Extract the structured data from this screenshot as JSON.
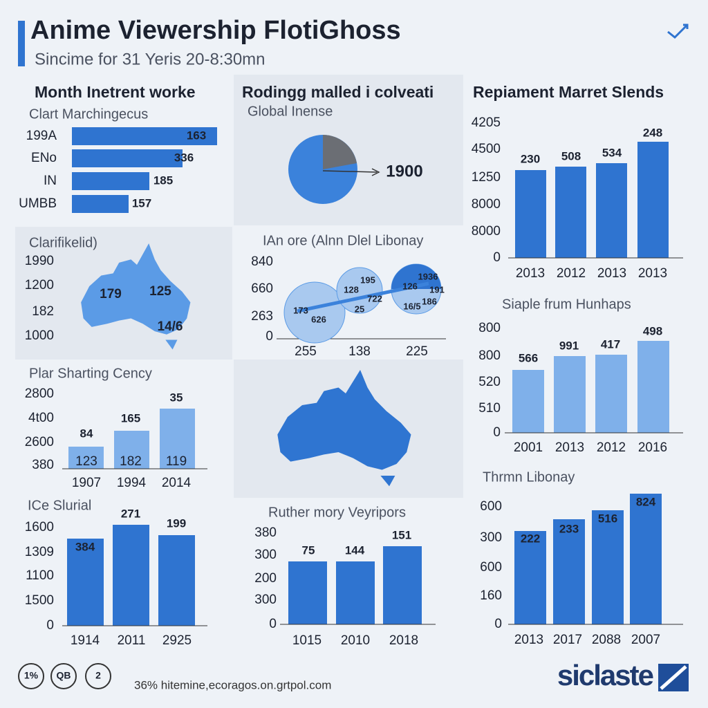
{
  "header": {
    "title": "Anime Viewership FlotiGhoss",
    "subtitle": "Sincime for 31 Yeris 20-8:30mn"
  },
  "panels": [
    {
      "title": "Month Inetrent worke",
      "subtitle": "Clart Marchingecus",
      "categories": [
        "199A",
        "ENo",
        "IN",
        "UMBB"
      ],
      "labels": [
        "163",
        "336",
        "185",
        "157"
      ]
    },
    {
      "title": "Rodingg malled i colveati",
      "subtitle": "Global Inense",
      "callout": "1900"
    },
    {
      "title": "Repiament Marret Slends",
      "ticks": [
        "4205",
        "4500",
        "1250",
        "8000",
        "8000",
        "0"
      ],
      "labels": [
        "230",
        "508",
        "534",
        "248"
      ],
      "categories": [
        "2013",
        "2012",
        "2013",
        "2013"
      ]
    },
    {
      "title": "Clarifikelid)",
      "ticks": [
        "1990",
        "1200",
        "182",
        "1000"
      ],
      "labels": [
        "179",
        "125",
        "14/6"
      ]
    },
    {
      "title": "IAn ore (Alnn Dlel Libonay",
      "ticks": [
        "840",
        "660",
        "263",
        "0"
      ],
      "labels": [
        "173",
        "626",
        "128",
        "195",
        "722",
        "25",
        "126",
        "1936",
        "191",
        "16/5",
        "186"
      ],
      "categories": [
        "255",
        "138",
        "225"
      ]
    },
    {
      "title": "Plar Sharting Cency",
      "ticks": [
        "2800",
        "4t00",
        "2600",
        "380"
      ],
      "labels": [
        "84",
        "165",
        "35"
      ],
      "inner_labels": [
        "123",
        "182",
        "119"
      ],
      "categories": [
        "1907",
        "1994",
        "2014"
      ]
    },
    {
      "title": "Siaple frum Hunhaps",
      "ticks": [
        "800",
        "800",
        "520",
        "510",
        "0"
      ],
      "labels": [
        "566",
        "991",
        "417",
        "498"
      ],
      "categories": [
        "2001",
        "2013",
        "2012",
        "2016"
      ]
    },
    {
      "title": "ICe Slurial",
      "ticks": [
        "1600",
        "1309",
        "1100",
        "1500",
        "0"
      ],
      "labels": [
        "384",
        "271",
        "199"
      ],
      "categories": [
        "1914",
        "2011",
        "2925"
      ]
    },
    {
      "title": "Ruther mory Veyripors",
      "ticks": [
        "380",
        "300",
        "200",
        "300",
        "0"
      ],
      "labels": [
        "75",
        "144",
        "151"
      ],
      "categories": [
        "1015",
        "2010",
        "2018"
      ]
    },
    {
      "title": "Thrmn Libonay",
      "ticks": [
        "600",
        "300",
        "600",
        "160",
        "0"
      ],
      "labels": [
        "222",
        "233",
        "516",
        "824"
      ],
      "categories": [
        "2013",
        "2017",
        "2088",
        "2007"
      ]
    }
  ],
  "footer": {
    "badges": [
      "1%",
      "QB",
      "2"
    ],
    "url": "36% hitemine,ecoragos.on.grtpol.com",
    "brand": "siclaste"
  }
}
